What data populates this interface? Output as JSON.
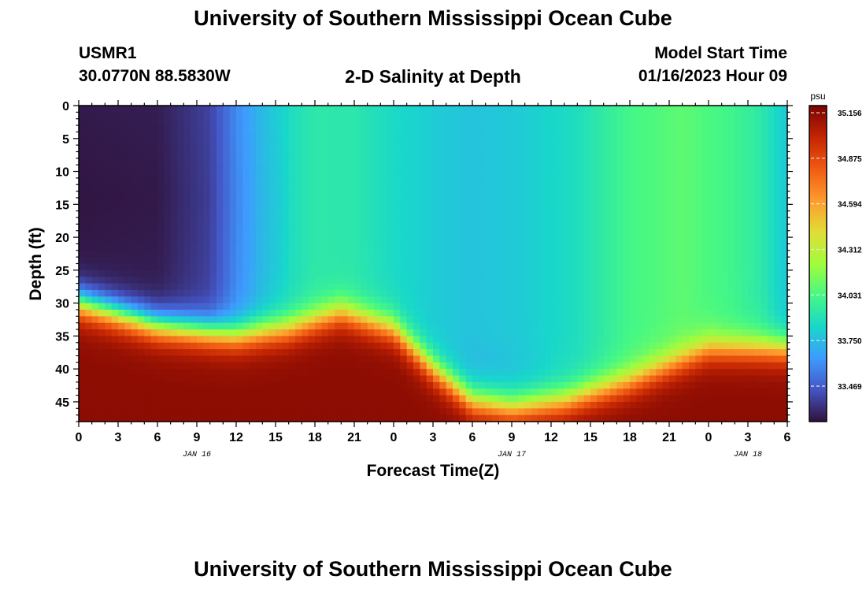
{
  "header": {
    "title": "University of Southern Mississippi Ocean Cube",
    "station_id": "USMR1",
    "station_coords": "30.0770N  88.5830W",
    "subtitle": "2-D Salinity at Depth",
    "model_start_label": "Model Start Time",
    "model_start_value": "01/16/2023 Hour 09"
  },
  "footer": {
    "title": "University of Southern Mississippi Ocean Cube"
  },
  "chart_data": {
    "type": "heatmap",
    "title": "2-D Salinity at Depth",
    "xlabel": "Forecast Time(Z)",
    "ylabel": "Depth (ft)",
    "x_tick_labels": [
      "0",
      "3",
      "6",
      "9",
      "12",
      "15",
      "18",
      "21",
      "0",
      "3",
      "6",
      "9",
      "12",
      "15",
      "18",
      "21",
      "0",
      "3",
      "6"
    ],
    "date_labels": [
      "JAN 16",
      "JAN 17",
      "JAN 18"
    ],
    "date_label_tick_index": [
      3,
      11,
      17
    ],
    "x_range_hours": [
      0,
      54
    ],
    "y_ticks": [
      0,
      5,
      10,
      15,
      20,
      25,
      30,
      35,
      40,
      45
    ],
    "ylim": [
      0,
      48
    ],
    "y_inverted": true,
    "colorbar": {
      "unit": "psu",
      "min": 33.25,
      "max": 35.2,
      "tick_values": [
        35.156,
        34.875,
        34.594,
        34.312,
        34.031,
        33.75,
        33.469
      ],
      "tick_labels": [
        "35.156",
        "34.875",
        "34.594",
        "34.312",
        "34.031",
        "33.750",
        "33.469"
      ]
    },
    "thermocline_depth_ft_by_hour": [
      {
        "hour": 0,
        "depth": 30
      },
      {
        "hour": 6,
        "depth": 33.5
      },
      {
        "hour": 12,
        "depth": 35
      },
      {
        "hour": 16,
        "depth": 34
      },
      {
        "hour": 20,
        "depth": 31.5
      },
      {
        "hour": 24,
        "depth": 34
      },
      {
        "hour": 27,
        "depth": 40
      },
      {
        "hour": 30,
        "depth": 45
      },
      {
        "hour": 33,
        "depth": 46
      },
      {
        "hour": 37,
        "depth": 45
      },
      {
        "hour": 42,
        "depth": 42
      },
      {
        "hour": 48,
        "depth": 37
      },
      {
        "hour": 54,
        "depth": 37
      }
    ],
    "upper_salinity_psu_by_hour": [
      {
        "hour": 0,
        "value": 33.28
      },
      {
        "hour": 6,
        "value": 33.29
      },
      {
        "hour": 10,
        "value": 33.4
      },
      {
        "hour": 12,
        "value": 33.6
      },
      {
        "hour": 14,
        "value": 33.75
      },
      {
        "hour": 16,
        "value": 33.86
      },
      {
        "hour": 18,
        "value": 33.93
      },
      {
        "hour": 21,
        "value": 33.92
      },
      {
        "hour": 24,
        "value": 33.85
      },
      {
        "hour": 27,
        "value": 33.8
      },
      {
        "hour": 30,
        "value": 33.77
      },
      {
        "hour": 34,
        "value": 33.8
      },
      {
        "hour": 38,
        "value": 33.87
      },
      {
        "hour": 42,
        "value": 34.02
      },
      {
        "hour": 46,
        "value": 34.08
      },
      {
        "hour": 50,
        "value": 34.0
      },
      {
        "hour": 52,
        "value": 33.93
      },
      {
        "hour": 54,
        "value": 33.78
      }
    ],
    "bottom_salinity_psu": 35.15,
    "colors": {
      "colormap": [
        "#30123b",
        "#4454c4",
        "#3e9bfe",
        "#18d7cb",
        "#46f884",
        "#a2fc3c",
        "#e1dd37",
        "#fe9b2d",
        "#f05b12",
        "#c42503",
        "#7a0403"
      ]
    }
  }
}
